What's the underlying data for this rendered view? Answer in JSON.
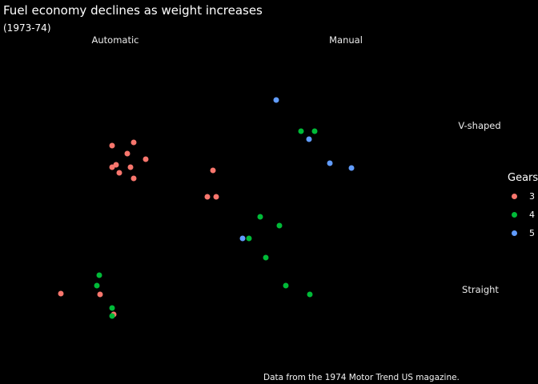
{
  "header": {
    "title": "Fuel economy declines as weight increases",
    "subtitle": "(1973-74)"
  },
  "caption": "Data from the 1974 Motor Trend US magazine.",
  "facets": {
    "columns": [
      "Automatic",
      "Manual"
    ],
    "rows": [
      "V-shaped",
      "Straight"
    ]
  },
  "legend": {
    "title": "Gears",
    "items": [
      {
        "label": "3",
        "color": "#f8766d"
      },
      {
        "label": "4",
        "color": "#00ba38"
      },
      {
        "label": "5",
        "color": "#619cff"
      }
    ]
  },
  "colors": {
    "background": "#000000",
    "text": "#ffffff",
    "strip_text": "#ececec",
    "gear3": "#f8766d",
    "gear4": "#00ba38",
    "gear5": "#619cff"
  },
  "chart_data": {
    "type": "scatter",
    "title": "Fuel economy declines as weight increases",
    "subtitle": "(1973-74)",
    "caption": "Data from the 1974 Motor Trend US magazine.",
    "xlabel": "",
    "ylabel": "",
    "axes_visible": false,
    "grid": false,
    "legend_position": "right",
    "color_legend": {
      "title": "Gears",
      "values": [
        "3",
        "4",
        "5"
      ]
    },
    "facet_grid": {
      "columns": [
        "Automatic",
        "Manual"
      ],
      "rows": [
        "V-shaped",
        "Straight"
      ]
    },
    "x_range": [
      1.32,
      5.62
    ],
    "y_range": [
      9.22,
      35.08
    ],
    "panels": [
      {
        "column": "Automatic",
        "row": "V-shaped",
        "points": [
          {
            "x": 3.44,
            "y": 18.7,
            "gear": "3"
          },
          {
            "x": 3.57,
            "y": 14.3,
            "gear": "3"
          },
          {
            "x": 4.07,
            "y": 16.4,
            "gear": "3"
          },
          {
            "x": 3.73,
            "y": 17.3,
            "gear": "3"
          },
          {
            "x": 3.78,
            "y": 15.2,
            "gear": "3"
          },
          {
            "x": 5.25,
            "y": 10.4,
            "gear": "3"
          },
          {
            "x": 5.42,
            "y": 10.4,
            "gear": "3"
          },
          {
            "x": 5.35,
            "y": 14.7,
            "gear": "3"
          },
          {
            "x": 3.52,
            "y": 15.5,
            "gear": "3"
          },
          {
            "x": 3.44,
            "y": 15.2,
            "gear": "3"
          },
          {
            "x": 3.84,
            "y": 13.3,
            "gear": "3"
          },
          {
            "x": 3.85,
            "y": 19.2,
            "gear": "3"
          }
        ]
      },
      {
        "column": "Manual",
        "row": "V-shaped",
        "points": [
          {
            "x": 2.62,
            "y": 21.0,
            "gear": "4"
          },
          {
            "x": 2.88,
            "y": 21.0,
            "gear": "4"
          },
          {
            "x": 2.14,
            "y": 26.0,
            "gear": "5"
          },
          {
            "x": 2.77,
            "y": 19.7,
            "gear": "5"
          },
          {
            "x": 3.17,
            "y": 15.8,
            "gear": "5"
          },
          {
            "x": 3.57,
            "y": 15.0,
            "gear": "5"
          }
        ]
      },
      {
        "column": "Automatic",
        "row": "Straight",
        "points": [
          {
            "x": 2.46,
            "y": 21.5,
            "gear": "3"
          },
          {
            "x": 3.21,
            "y": 21.4,
            "gear": "3"
          },
          {
            "x": 3.46,
            "y": 18.1,
            "gear": "3"
          },
          {
            "x": 3.19,
            "y": 24.4,
            "gear": "4"
          },
          {
            "x": 3.15,
            "y": 22.8,
            "gear": "4"
          },
          {
            "x": 3.44,
            "y": 19.2,
            "gear": "4"
          },
          {
            "x": 3.44,
            "y": 17.8,
            "gear": "4"
          }
        ]
      },
      {
        "column": "Manual",
        "row": "Straight",
        "points": [
          {
            "x": 1.84,
            "y": 33.9,
            "gear": "4"
          },
          {
            "x": 2.2,
            "y": 32.4,
            "gear": "4"
          },
          {
            "x": 1.62,
            "y": 30.4,
            "gear": "4"
          },
          {
            "x": 1.51,
            "y": 30.4,
            "gear": "5"
          },
          {
            "x": 1.94,
            "y": 27.3,
            "gear": "4"
          },
          {
            "x": 2.32,
            "y": 22.8,
            "gear": "4"
          },
          {
            "x": 2.78,
            "y": 21.4,
            "gear": "4"
          }
        ]
      }
    ]
  }
}
